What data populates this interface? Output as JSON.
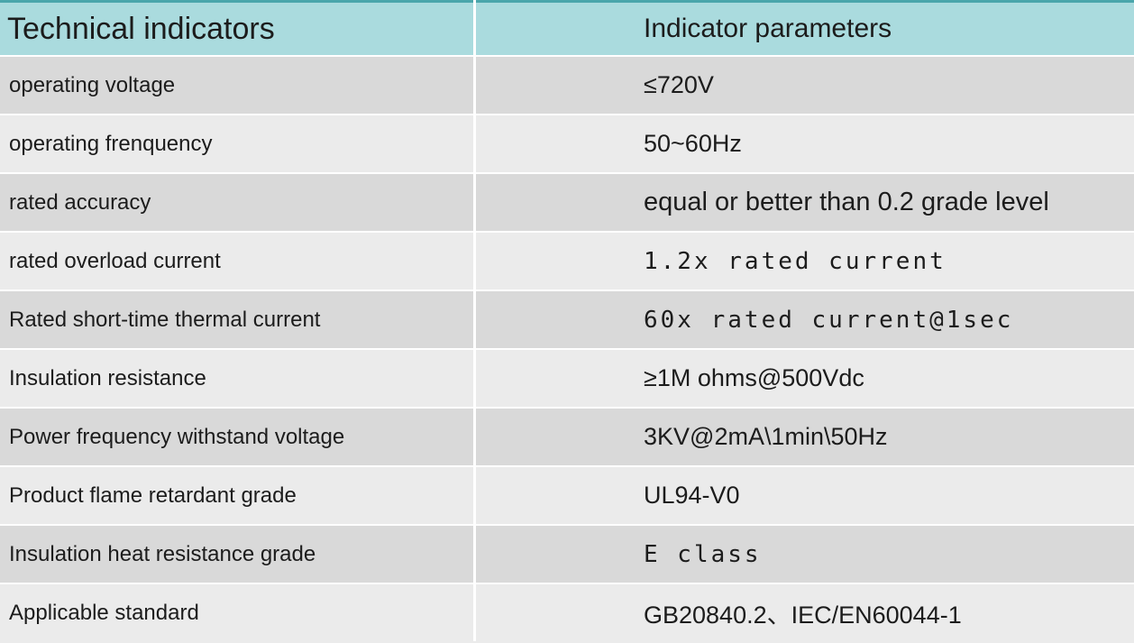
{
  "colors": {
    "top_line": "#4aa6ab",
    "header_bg": "#aadbde",
    "row_dark": "#d9d9d9",
    "row_light": "#ebebeb",
    "divider": "#ffffff",
    "text": "#1c1c1c"
  },
  "table": {
    "header": {
      "col1": "Technical indicators",
      "col2": "Indicator parameters"
    },
    "rows": [
      {
        "indicator": "operating voltage",
        "parameter": "≤720V",
        "style": "sans"
      },
      {
        "indicator": "operating frenquency",
        "parameter": "50~60Hz",
        "style": "sans"
      },
      {
        "indicator": "rated accuracy",
        "parameter": "equal or better than 0.2 grade level",
        "style": "sans-large"
      },
      {
        "indicator": "rated overload current",
        "parameter": "1.2x rated current",
        "style": "mono"
      },
      {
        "indicator": "Rated short-time thermal current",
        "parameter": "60x rated current@1sec",
        "style": "mono"
      },
      {
        "indicator": "Insulation resistance",
        "parameter": "≥1M ohms@500Vdc",
        "style": "sans"
      },
      {
        "indicator": "Power frequency withstand voltage",
        "parameter": "3KV@2mA\\1min\\50Hz",
        "style": "sans"
      },
      {
        "indicator": "Product flame retardant grade",
        "parameter": "UL94-V0",
        "style": "sans"
      },
      {
        "indicator": "Insulation heat resistance grade",
        "parameter": "E class",
        "style": "mono"
      },
      {
        "indicator": "Applicable standard",
        "parameter": "GB20840.2、IEC/EN60044-1",
        "style": "sans"
      }
    ]
  }
}
